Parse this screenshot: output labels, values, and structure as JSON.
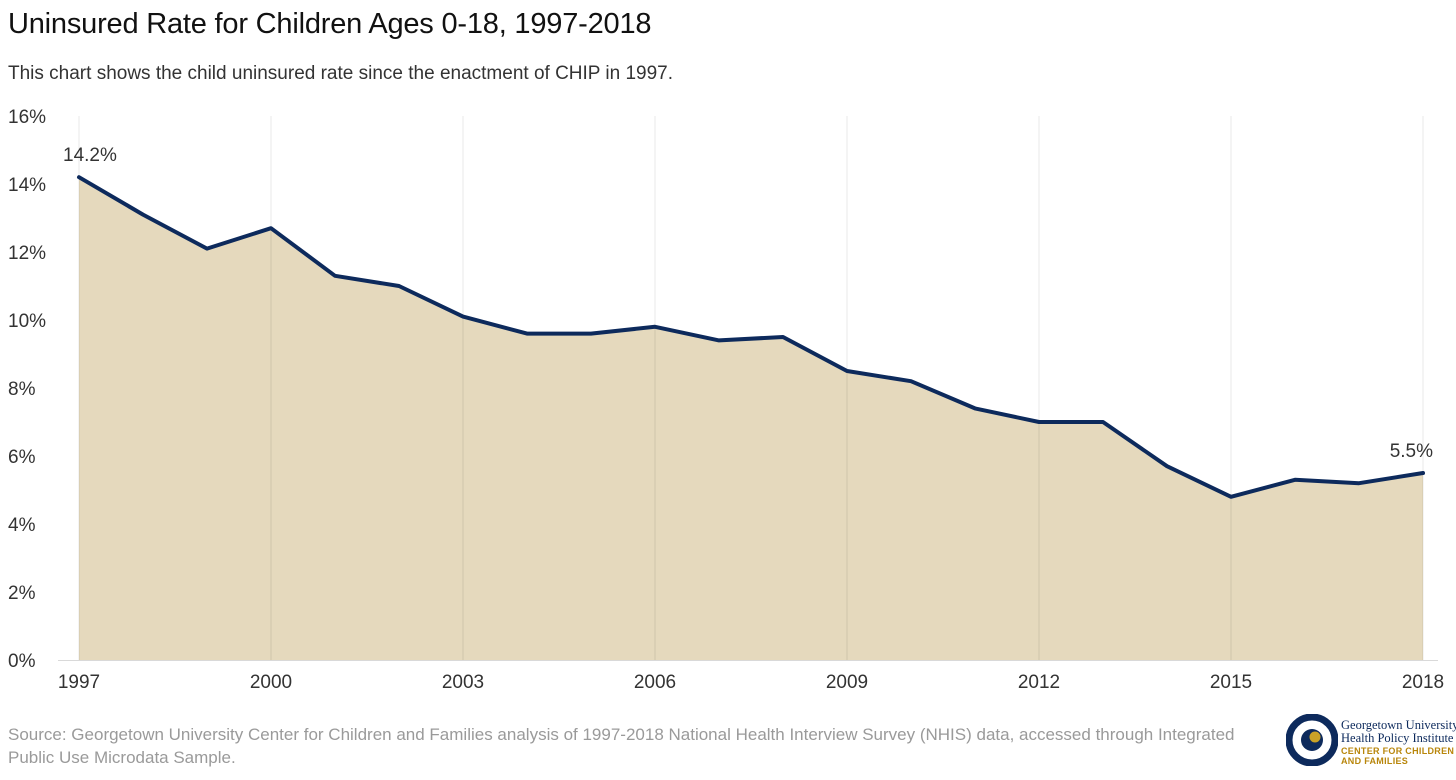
{
  "title": "Uninsured Rate for Children Ages 0-18, 1997-2018",
  "subtitle": "This chart shows the child uninsured rate since the enactment of CHIP in 1997.",
  "source": "Source: Georgetown University Center for Children and Families analysis of 1997-2018 National Health Interview Survey (NHIS) data, accessed through Integrated Public Use Microdata Sample.",
  "logo": {
    "line1": "Georgetown University",
    "line2": "Health Policy Institute",
    "line3": "CENTER FOR CHILDREN",
    "line4": "AND FAMILIES"
  },
  "colors": {
    "line": "#0d2a5c",
    "fill": "#e5d9bd",
    "grid": "#e2e2e2",
    "logo_navy": "#0d2a5c",
    "logo_gold": "#b8860b"
  },
  "chart_data": {
    "type": "area",
    "x": [
      1997,
      1998,
      1999,
      2000,
      2001,
      2002,
      2003,
      2004,
      2005,
      2006,
      2007,
      2008,
      2009,
      2010,
      2011,
      2012,
      2013,
      2014,
      2015,
      2016,
      2017,
      2018
    ],
    "values": [
      14.2,
      13.1,
      12.1,
      12.7,
      11.3,
      11.0,
      10.1,
      9.6,
      9.6,
      9.8,
      9.4,
      9.5,
      8.5,
      8.2,
      7.4,
      7.0,
      7.0,
      5.7,
      4.8,
      5.3,
      5.2,
      5.5
    ],
    "xticks": [
      1997,
      2000,
      2003,
      2006,
      2009,
      2012,
      2015,
      2018
    ],
    "yticks": [
      "0%",
      "2%",
      "4%",
      "6%",
      "8%",
      "10%",
      "12%",
      "14%",
      "16%"
    ],
    "ylim": [
      0,
      16
    ],
    "xlim": [
      1997,
      2018
    ],
    "grid": "vertical",
    "annotations": [
      {
        "x": 1997,
        "text": "14.2%"
      },
      {
        "x": 2018,
        "text": "5.5%"
      }
    ]
  }
}
